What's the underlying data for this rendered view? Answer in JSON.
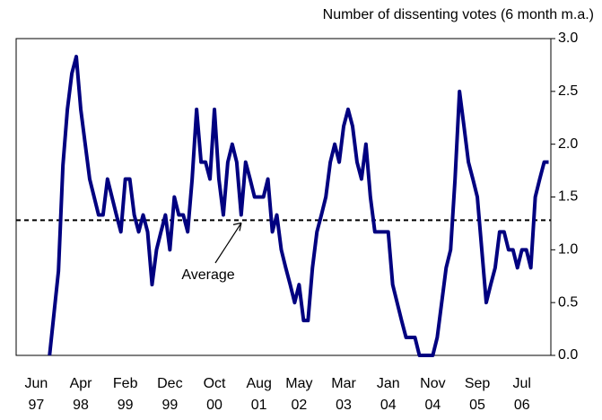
{
  "chart_data": {
    "type": "line",
    "title": "Number of dissenting votes (6 month m.a.)",
    "categories": [
      null,
      null,
      null,
      null,
      "Jun 97",
      null,
      null,
      null,
      null,
      null,
      null,
      null,
      null,
      null,
      "Apr 98",
      null,
      null,
      null,
      null,
      null,
      null,
      null,
      null,
      null,
      "Feb 99",
      null,
      null,
      null,
      null,
      null,
      null,
      null,
      null,
      null,
      "Dec 99",
      null,
      null,
      null,
      null,
      null,
      null,
      null,
      null,
      null,
      "Oct 00",
      null,
      null,
      null,
      null,
      null,
      null,
      null,
      null,
      null,
      "Aug 01",
      null,
      null,
      null,
      null,
      null,
      null,
      null,
      null,
      "May 02",
      null,
      null,
      null,
      null,
      null,
      null,
      null,
      null,
      null,
      "Mar 03",
      null,
      null,
      null,
      null,
      null,
      null,
      null,
      null,
      null,
      "Jan 04",
      null,
      null,
      null,
      null,
      null,
      null,
      null,
      null,
      null,
      "Nov 04",
      null,
      null,
      null,
      null,
      null,
      null,
      null,
      null,
      null,
      "Sep 05",
      null,
      null,
      null,
      null,
      null,
      null,
      null,
      null,
      null,
      "Jul 06",
      null,
      null,
      null,
      null,
      null,
      null
    ],
    "series": [
      {
        "name": "Dissenting votes",
        "color": "#000080",
        "values": [
          null,
          null,
          null,
          null,
          null,
          null,
          null,
          0,
          0.4,
          0.8,
          1.8,
          2.33,
          2.67,
          2.83,
          2.33,
          2.0,
          1.67,
          1.5,
          1.33,
          1.33,
          1.67,
          1.5,
          1.33,
          1.17,
          1.67,
          1.67,
          1.33,
          1.17,
          1.33,
          1.17,
          0.67,
          1.0,
          1.17,
          1.33,
          1.0,
          1.5,
          1.33,
          1.33,
          1.17,
          1.67,
          2.33,
          1.83,
          1.83,
          1.67,
          2.33,
          1.67,
          1.33,
          1.83,
          2.0,
          1.83,
          1.33,
          1.83,
          1.67,
          1.5,
          1.5,
          1.5,
          1.67,
          1.17,
          1.33,
          1.0,
          0.83,
          0.67,
          0.5,
          0.67,
          0.33,
          0.33,
          0.83,
          1.17,
          1.33,
          1.5,
          1.83,
          2.0,
          1.83,
          2.17,
          2.33,
          2.17,
          1.83,
          1.67,
          2.0,
          1.5,
          1.17,
          1.17,
          1.17,
          1.17,
          0.67,
          0.5,
          0.33,
          0.17,
          0.17,
          0.17,
          0,
          0,
          0,
          0,
          0.17,
          0.5,
          0.83,
          1.0,
          1.67,
          2.5,
          2.17,
          1.83,
          1.67,
          1.5,
          1.0,
          0.5,
          0.67,
          0.83,
          1.17,
          1.17,
          1.0,
          1.0,
          0.83,
          1.0,
          1.0,
          0.83,
          1.5,
          1.67,
          1.83,
          1.83
        ]
      }
    ],
    "average": 1.28,
    "annotation": "Average",
    "ylim": [
      0,
      3
    ],
    "yticks": [
      {
        "value": 0,
        "label": "0.0"
      },
      0.5,
      {
        "value": 1,
        "label": "1.0"
      },
      1.5,
      {
        "value": 2,
        "label": "2.0"
      },
      2.5,
      {
        "value": 3,
        "label": "3.0"
      }
    ]
  }
}
